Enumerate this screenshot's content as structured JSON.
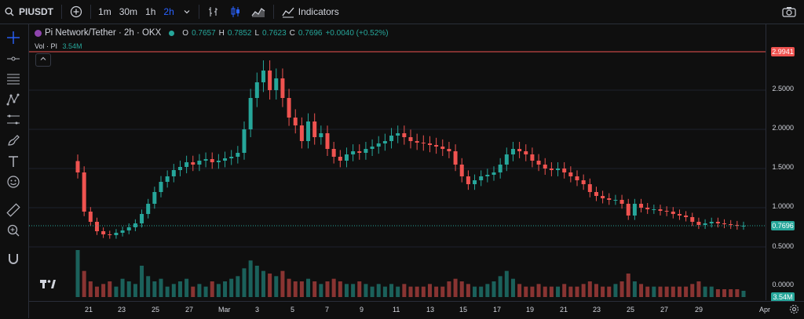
{
  "toolbar": {
    "symbol": "PIUSDT",
    "timeframes": [
      "1m",
      "30m",
      "1h",
      "2h"
    ],
    "active_timeframe": "2h",
    "indicators_label": "Indicators"
  },
  "legend": {
    "title": "Pi Network/Tether · 2h · OKX",
    "open_label": "O",
    "open": "0.7657",
    "high_label": "H",
    "high": "0.7852",
    "low_label": "L",
    "low": "0.7623",
    "close_label": "C",
    "close": "0.7696",
    "change": "+0.0040 (+0.52%)",
    "volume_label": "Vol · PI",
    "volume_value": "3.54M"
  },
  "colors": {
    "up": "#26a69a",
    "down": "#ef5350",
    "accent": "#2962ff",
    "price_line": "#ef5350"
  },
  "chart_data": {
    "type": "candlestick",
    "y_ticks": [
      "2.5000",
      "2.0000",
      "1.5000",
      "1.0000",
      "0.5000",
      "0.0000"
    ],
    "x_ticks": [
      "21",
      "23",
      "25",
      "27",
      "Mar",
      "3",
      "5",
      "7",
      "9",
      "11",
      "13",
      "15",
      "17",
      "19",
      "21",
      "23",
      "25",
      "27",
      "29",
      "Apr"
    ],
    "price_high_badge": "2.9941",
    "last_price_badge": "0.7696",
    "volume_badge": "3.54M",
    "ylim": [
      0,
      3.0
    ],
    "close_series": [
      1.45,
      0.95,
      0.82,
      0.7,
      0.66,
      0.65,
      0.68,
      0.71,
      0.75,
      0.8,
      0.92,
      1.05,
      1.2,
      1.33,
      1.4,
      1.48,
      1.52,
      1.58,
      1.55,
      1.6,
      1.62,
      1.58,
      1.6,
      1.63,
      1.65,
      1.7,
      2.0,
      2.4,
      2.6,
      2.75,
      2.5,
      2.65,
      2.4,
      2.15,
      2.05,
      1.85,
      2.1,
      1.9,
      1.95,
      1.75,
      1.65,
      1.6,
      1.68,
      1.72,
      1.7,
      1.75,
      1.78,
      1.82,
      1.85,
      1.92,
      1.95,
      1.9,
      1.85,
      1.83,
      1.82,
      1.8,
      1.78,
      1.75,
      1.72,
      1.55,
      1.4,
      1.3,
      1.35,
      1.4,
      1.42,
      1.45,
      1.55,
      1.68,
      1.75,
      1.72,
      1.68,
      1.6,
      1.55,
      1.5,
      1.48,
      1.5,
      1.45,
      1.4,
      1.35,
      1.3,
      1.2,
      1.15,
      1.12,
      1.1,
      1.1,
      1.05,
      0.9,
      1.05,
      1.0,
      0.98,
      0.98,
      0.96,
      0.95,
      0.92,
      0.9,
      0.88,
      0.82,
      0.78,
      0.8,
      0.82,
      0.8,
      0.79,
      0.78,
      0.77,
      0.77
    ],
    "volume_series": [
      0.9,
      0.5,
      0.3,
      0.2,
      0.25,
      0.3,
      0.2,
      0.35,
      0.3,
      0.25,
      0.6,
      0.4,
      0.3,
      0.35,
      0.2,
      0.25,
      0.3,
      0.35,
      0.2,
      0.25,
      0.2,
      0.3,
      0.25,
      0.3,
      0.35,
      0.4,
      0.55,
      0.7,
      0.6,
      0.5,
      0.45,
      0.4,
      0.5,
      0.35,
      0.3,
      0.3,
      0.35,
      0.3,
      0.25,
      0.3,
      0.35,
      0.3,
      0.25,
      0.25,
      0.3,
      0.25,
      0.2,
      0.25,
      0.2,
      0.25,
      0.2,
      0.25,
      0.2,
      0.2,
      0.2,
      0.25,
      0.2,
      0.2,
      0.3,
      0.35,
      0.3,
      0.25,
      0.2,
      0.2,
      0.25,
      0.3,
      0.4,
      0.5,
      0.35,
      0.25,
      0.2,
      0.2,
      0.25,
      0.2,
      0.2,
      0.2,
      0.25,
      0.2,
      0.2,
      0.25,
      0.3,
      0.25,
      0.2,
      0.2,
      0.25,
      0.3,
      0.45,
      0.3,
      0.25,
      0.2,
      0.2,
      0.2,
      0.2,
      0.2,
      0.2,
      0.2,
      0.25,
      0.3,
      0.2,
      0.2,
      0.15,
      0.15,
      0.15,
      0.15,
      0.12
    ]
  }
}
